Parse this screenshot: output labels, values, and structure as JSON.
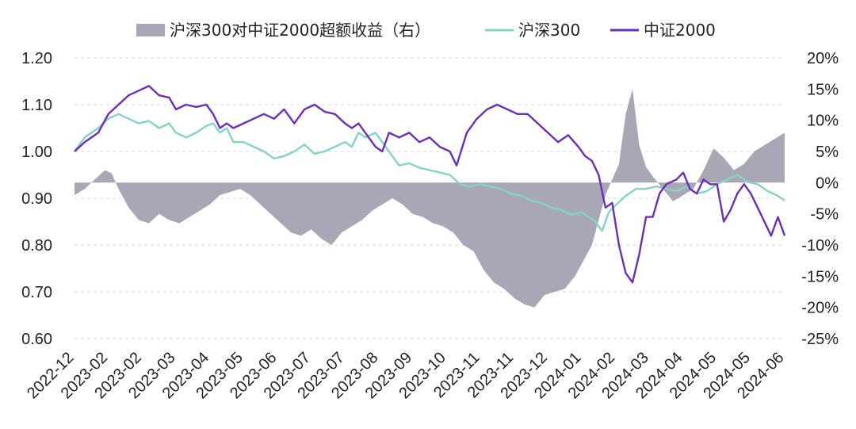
{
  "chart_data": {
    "type": "line",
    "title": "",
    "legend": {
      "placement": "top-center",
      "entries": [
        {
          "label": "沪深300对中证2000超额收益（右）",
          "symbol": "area",
          "color": "#a7a7b5"
        },
        {
          "label": "沪深300",
          "symbol": "line",
          "color": "#86d1c8"
        },
        {
          "label": "中证2000",
          "symbol": "line",
          "color": "#6a2fb3"
        }
      ]
    },
    "x_ticks": [
      "2022-12",
      "2023-02",
      "2023-02",
      "2023-03",
      "2023-04",
      "2023-05",
      "2023-06",
      "2023-07",
      "2023-07",
      "2023-08",
      "2023-09",
      "2023-10",
      "2023-11",
      "2023-11",
      "2023-12",
      "2024-01",
      "2024-02",
      "2024-03",
      "2024-04",
      "2024-05",
      "2024-05",
      "2024-06"
    ],
    "y_left": {
      "min": 0.6,
      "max": 1.2,
      "ticks": [
        "0.60",
        "0.70",
        "0.80",
        "0.90",
        "1.00",
        "1.10",
        "1.20"
      ]
    },
    "y_right": {
      "min": -25,
      "max": 20,
      "unit": "%",
      "ticks": [
        "-25%",
        "-20%",
        "-15%",
        "-10%",
        "-5%",
        "0%",
        "5%",
        "10%",
        "15%",
        "20%"
      ]
    },
    "grid": "horizontal dashed",
    "x_range": [
      0,
      21
    ],
    "series": [
      {
        "name": "沪深300",
        "axis": "left",
        "type": "line",
        "color": "#86d1c8",
        "points": [
          [
            0,
            1.0
          ],
          [
            0.3,
            1.03
          ],
          [
            0.7,
            1.05
          ],
          [
            1.0,
            1.07
          ],
          [
            1.3,
            1.08
          ],
          [
            1.6,
            1.07
          ],
          [
            1.9,
            1.06
          ],
          [
            2.2,
            1.065
          ],
          [
            2.5,
            1.05
          ],
          [
            2.8,
            1.06
          ],
          [
            3.0,
            1.04
          ],
          [
            3.3,
            1.03
          ],
          [
            3.6,
            1.04
          ],
          [
            3.9,
            1.055
          ],
          [
            4.1,
            1.06
          ],
          [
            4.3,
            1.04
          ],
          [
            4.5,
            1.05
          ],
          [
            4.7,
            1.02
          ],
          [
            5.0,
            1.02
          ],
          [
            5.3,
            1.01
          ],
          [
            5.6,
            1.0
          ],
          [
            5.9,
            0.985
          ],
          [
            6.2,
            0.99
          ],
          [
            6.5,
            1.0
          ],
          [
            6.8,
            1.015
          ],
          [
            7.1,
            0.995
          ],
          [
            7.4,
            1.0
          ],
          [
            7.7,
            1.01
          ],
          [
            8.0,
            1.02
          ],
          [
            8.2,
            1.01
          ],
          [
            8.4,
            1.04
          ],
          [
            8.6,
            1.03
          ],
          [
            8.9,
            1.04
          ],
          [
            9.1,
            1.02
          ],
          [
            9.3,
            1.0
          ],
          [
            9.6,
            0.97
          ],
          [
            9.9,
            0.975
          ],
          [
            10.2,
            0.965
          ],
          [
            10.5,
            0.96
          ],
          [
            10.8,
            0.955
          ],
          [
            11.1,
            0.95
          ],
          [
            11.4,
            0.93
          ],
          [
            11.7,
            0.925
          ],
          [
            12.0,
            0.93
          ],
          [
            12.3,
            0.925
          ],
          [
            12.6,
            0.92
          ],
          [
            12.9,
            0.91
          ],
          [
            13.2,
            0.905
          ],
          [
            13.5,
            0.895
          ],
          [
            13.8,
            0.89
          ],
          [
            14.1,
            0.88
          ],
          [
            14.4,
            0.875
          ],
          [
            14.7,
            0.865
          ],
          [
            15.0,
            0.87
          ],
          [
            15.2,
            0.86
          ],
          [
            15.4,
            0.85
          ],
          [
            15.6,
            0.83
          ],
          [
            15.8,
            0.87
          ],
          [
            16.0,
            0.885
          ],
          [
            16.3,
            0.905
          ],
          [
            16.6,
            0.92
          ],
          [
            16.9,
            0.92
          ],
          [
            17.2,
            0.925
          ],
          [
            17.5,
            0.92
          ],
          [
            17.8,
            0.915
          ],
          [
            18.1,
            0.925
          ],
          [
            18.4,
            0.91
          ],
          [
            18.7,
            0.915
          ],
          [
            19.0,
            0.93
          ],
          [
            19.3,
            0.94
          ],
          [
            19.6,
            0.95
          ],
          [
            19.9,
            0.935
          ],
          [
            20.2,
            0.93
          ],
          [
            20.5,
            0.915
          ],
          [
            20.8,
            0.905
          ],
          [
            21.0,
            0.895
          ]
        ]
      },
      {
        "name": "中证2000",
        "axis": "left",
        "type": "line",
        "color": "#6a2fb3",
        "points": [
          [
            0,
            1.0
          ],
          [
            0.3,
            1.02
          ],
          [
            0.7,
            1.04
          ],
          [
            1.0,
            1.08
          ],
          [
            1.3,
            1.1
          ],
          [
            1.6,
            1.12
          ],
          [
            1.9,
            1.13
          ],
          [
            2.2,
            1.14
          ],
          [
            2.5,
            1.12
          ],
          [
            2.8,
            1.115
          ],
          [
            3.0,
            1.09
          ],
          [
            3.3,
            1.1
          ],
          [
            3.6,
            1.095
          ],
          [
            3.9,
            1.1
          ],
          [
            4.1,
            1.08
          ],
          [
            4.3,
            1.05
          ],
          [
            4.5,
            1.06
          ],
          [
            4.7,
            1.05
          ],
          [
            5.0,
            1.06
          ],
          [
            5.3,
            1.07
          ],
          [
            5.6,
            1.08
          ],
          [
            5.9,
            1.07
          ],
          [
            6.2,
            1.09
          ],
          [
            6.5,
            1.06
          ],
          [
            6.8,
            1.09
          ],
          [
            7.1,
            1.1
          ],
          [
            7.4,
            1.085
          ],
          [
            7.7,
            1.08
          ],
          [
            8.0,
            1.06
          ],
          [
            8.2,
            1.05
          ],
          [
            8.4,
            1.06
          ],
          [
            8.6,
            1.04
          ],
          [
            8.9,
            1.01
          ],
          [
            9.1,
            1.0
          ],
          [
            9.3,
            1.04
          ],
          [
            9.6,
            1.03
          ],
          [
            9.9,
            1.04
          ],
          [
            10.2,
            1.02
          ],
          [
            10.5,
            1.03
          ],
          [
            10.8,
            1.01
          ],
          [
            11.1,
            1.0
          ],
          [
            11.3,
            0.97
          ],
          [
            11.6,
            1.04
          ],
          [
            11.9,
            1.07
          ],
          [
            12.2,
            1.09
          ],
          [
            12.5,
            1.1
          ],
          [
            12.8,
            1.09
          ],
          [
            13.1,
            1.08
          ],
          [
            13.4,
            1.08
          ],
          [
            13.7,
            1.06
          ],
          [
            14.0,
            1.04
          ],
          [
            14.3,
            1.02
          ],
          [
            14.6,
            1.035
          ],
          [
            14.9,
            1.01
          ],
          [
            15.1,
            0.99
          ],
          [
            15.3,
            0.98
          ],
          [
            15.5,
            0.95
          ],
          [
            15.7,
            0.88
          ],
          [
            15.9,
            0.89
          ],
          [
            16.1,
            0.8
          ],
          [
            16.3,
            0.74
          ],
          [
            16.5,
            0.72
          ],
          [
            16.7,
            0.78
          ],
          [
            16.9,
            0.86
          ],
          [
            17.1,
            0.86
          ],
          [
            17.3,
            0.91
          ],
          [
            17.5,
            0.93
          ],
          [
            17.8,
            0.94
          ],
          [
            18.0,
            0.955
          ],
          [
            18.2,
            0.92
          ],
          [
            18.4,
            0.91
          ],
          [
            18.6,
            0.94
          ],
          [
            18.8,
            0.93
          ],
          [
            19.0,
            0.93
          ],
          [
            19.2,
            0.85
          ],
          [
            19.4,
            0.875
          ],
          [
            19.6,
            0.91
          ],
          [
            19.8,
            0.93
          ],
          [
            20.0,
            0.91
          ],
          [
            20.2,
            0.88
          ],
          [
            20.4,
            0.85
          ],
          [
            20.6,
            0.82
          ],
          [
            20.8,
            0.86
          ],
          [
            21.0,
            0.82
          ]
        ]
      },
      {
        "name": "沪深300对中证2000超额收益（右）",
        "axis": "right",
        "type": "area",
        "color": "#a7a7b5",
        "points": [
          [
            0,
            -2.0
          ],
          [
            0.3,
            -1.0
          ],
          [
            0.6,
            0.5
          ],
          [
            0.9,
            2.0
          ],
          [
            1.1,
            1.5
          ],
          [
            1.3,
            -1.0
          ],
          [
            1.6,
            -4.0
          ],
          [
            1.9,
            -6.0
          ],
          [
            2.2,
            -6.5
          ],
          [
            2.5,
            -5.0
          ],
          [
            2.8,
            -6.0
          ],
          [
            3.1,
            -6.5
          ],
          [
            3.4,
            -5.5
          ],
          [
            3.7,
            -4.5
          ],
          [
            4.0,
            -3.5
          ],
          [
            4.3,
            -2.0
          ],
          [
            4.6,
            -1.5
          ],
          [
            4.9,
            -1.0
          ],
          [
            5.2,
            -2.0
          ],
          [
            5.5,
            -3.5
          ],
          [
            5.8,
            -5.0
          ],
          [
            6.1,
            -6.5
          ],
          [
            6.4,
            -8.0
          ],
          [
            6.7,
            -8.5
          ],
          [
            7.0,
            -7.5
          ],
          [
            7.3,
            -9.0
          ],
          [
            7.6,
            -10.0
          ],
          [
            7.9,
            -8.0
          ],
          [
            8.2,
            -7.0
          ],
          [
            8.5,
            -6.0
          ],
          [
            8.8,
            -4.5
          ],
          [
            9.1,
            -3.5
          ],
          [
            9.4,
            -2.5
          ],
          [
            9.7,
            -3.5
          ],
          [
            10.0,
            -5.0
          ],
          [
            10.3,
            -5.5
          ],
          [
            10.6,
            -6.5
          ],
          [
            10.9,
            -7.0
          ],
          [
            11.2,
            -8.0
          ],
          [
            11.5,
            -10.0
          ],
          [
            11.8,
            -11.0
          ],
          [
            12.1,
            -14.0
          ],
          [
            12.4,
            -16.0
          ],
          [
            12.7,
            -17.0
          ],
          [
            13.0,
            -18.5
          ],
          [
            13.3,
            -19.5
          ],
          [
            13.6,
            -20.0
          ],
          [
            13.9,
            -18.0
          ],
          [
            14.2,
            -17.5
          ],
          [
            14.5,
            -17.0
          ],
          [
            14.8,
            -15.0
          ],
          [
            15.1,
            -12.0
          ],
          [
            15.3,
            -10.0
          ],
          [
            15.5,
            -6.0
          ],
          [
            15.7,
            -2.0
          ],
          [
            15.9,
            0.5
          ],
          [
            16.1,
            3.0
          ],
          [
            16.3,
            11.0
          ],
          [
            16.5,
            15.0
          ],
          [
            16.7,
            6.0
          ],
          [
            16.9,
            2.5
          ],
          [
            17.1,
            1.0
          ],
          [
            17.4,
            -1.0
          ],
          [
            17.7,
            -3.0
          ],
          [
            18.0,
            -2.0
          ],
          [
            18.3,
            -1.0
          ],
          [
            18.6,
            2.0
          ],
          [
            18.9,
            5.5
          ],
          [
            19.2,
            4.0
          ],
          [
            19.5,
            2.0
          ],
          [
            19.8,
            3.0
          ],
          [
            20.1,
            5.0
          ],
          [
            20.4,
            6.0
          ],
          [
            20.7,
            7.0
          ],
          [
            21.0,
            8.0
          ]
        ]
      }
    ]
  }
}
